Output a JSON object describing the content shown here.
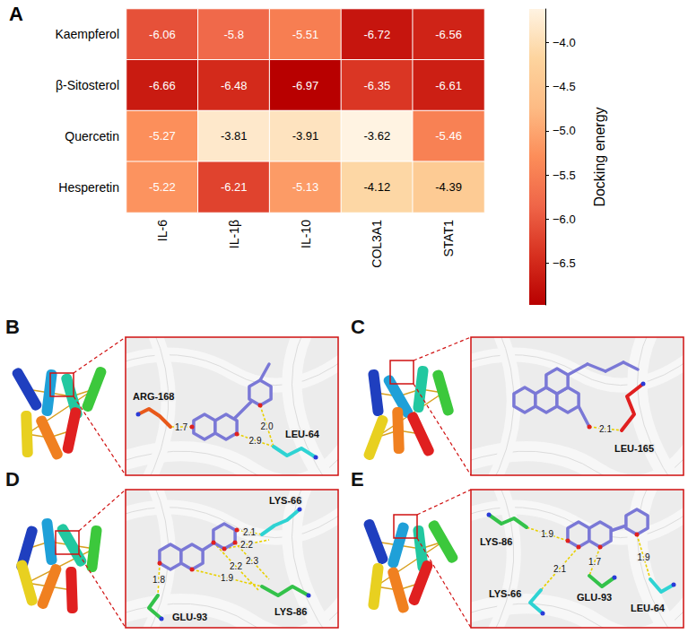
{
  "chart_data": {
    "type": "heatmap",
    "panel_label": "A",
    "categories": [
      "IL-6",
      "IL-1β",
      "IL-10",
      "COL3A1",
      "STAT1"
    ],
    "rows": [
      "Kaempferol",
      "β-Sitosterol",
      "Quercetin",
      "Hesperetin"
    ],
    "cells": [
      [
        -6.06,
        -5.8,
        -5.51,
        -6.72,
        -6.56
      ],
      [
        -6.66,
        -6.48,
        -6.97,
        -6.35,
        -6.61
      ],
      [
        -5.27,
        -3.81,
        -3.91,
        -3.62,
        -5.46
      ],
      [
        -5.22,
        -6.21,
        -5.13,
        -4.12,
        -4.39
      ]
    ],
    "data_labels": true,
    "colorbar": {
      "title": "Docking energy",
      "lim": [
        -6.97,
        -3.62
      ],
      "ticks": [
        {
          "value": -6.5,
          "label": "−6.5"
        },
        {
          "value": -6,
          "label": "−6.0"
        },
        {
          "value": -5.5,
          "label": "−5.5"
        },
        {
          "value": -5,
          "label": "−5.0"
        },
        {
          "value": -4.5,
          "label": "−4.5"
        },
        {
          "value": -4,
          "label": "−4.0"
        }
      ]
    }
  },
  "docking_panels": [
    {
      "label": "B",
      "residues": [
        {
          "name": "ARG-168",
          "distances": [
            "1.7"
          ]
        },
        {
          "name": "LEU-64",
          "distances": [
            "2.0",
            "2.9"
          ]
        }
      ]
    },
    {
      "label": "C",
      "residues": [
        {
          "name": "LEU-165",
          "distances": [
            "2.1"
          ]
        }
      ]
    },
    {
      "label": "D",
      "residues": [
        {
          "name": "LYS-66",
          "distances": [
            "2.1",
            "2.2"
          ]
        },
        {
          "name": "LYS-86",
          "distances": [
            "1.9",
            "2.2",
            "2.3"
          ]
        },
        {
          "name": "GLU-93",
          "distances": [
            "1.8"
          ]
        }
      ]
    },
    {
      "label": "E",
      "residues": [
        {
          "name": "LYS-86",
          "distances": [
            "1.9"
          ]
        },
        {
          "name": "GLU-93",
          "distances": [
            "1.7"
          ]
        },
        {
          "name": "LYS-66",
          "distances": [
            "2.1"
          ]
        },
        {
          "name": "LEU-64",
          "distances": [
            "1.9"
          ]
        }
      ]
    }
  ]
}
